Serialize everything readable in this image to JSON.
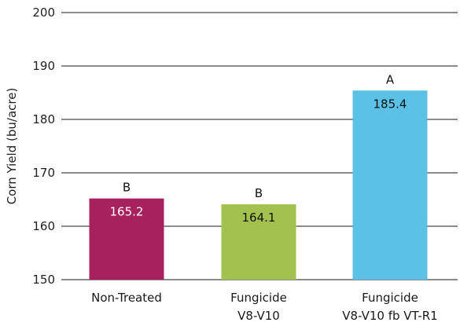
{
  "chart_data": {
    "type": "bar",
    "ylabel": "Corn Yield (bu/acre)",
    "xlabel": "",
    "ylim": [
      150,
      200
    ],
    "yticks": [
      150,
      160,
      170,
      180,
      190,
      200
    ],
    "grid": true,
    "categories": [
      [
        "Non-Treated"
      ],
      [
        "Fungicide",
        "V8-V10"
      ],
      [
        "Fungicide",
        "V8-V10 fb VT-R1"
      ]
    ],
    "values": [
      165.2,
      164.1,
      185.4
    ],
    "value_labels": [
      "165.2",
      "164.1",
      "185.4"
    ],
    "significance_letters": [
      "B",
      "B",
      "A"
    ],
    "colors": [
      "#a6215e",
      "#a3c14e",
      "#5cc1e6"
    ],
    "value_label_colors": [
      "#ffffff",
      "#111111",
      "#111111"
    ]
  }
}
